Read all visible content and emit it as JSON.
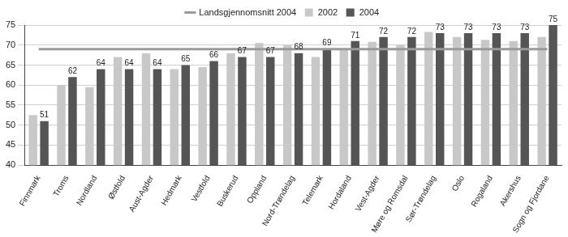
{
  "chart_data": {
    "type": "bar",
    "categories": [
      "Finnmark",
      "Troms",
      "Nordland",
      "Østfold",
      "Aust-Agder",
      "Hedmark",
      "Vestfold",
      "Buskerud",
      "Oppland",
      "Nord-Trøndelag",
      "Telemark",
      "Hordaland",
      "Vest-Agder",
      "Møre og Romsdal",
      "Sør-Trøndelag",
      "Oslo",
      "Rogaland",
      "Akershus",
      "Sogn og Fjordane"
    ],
    "series": [
      {
        "name": "2002",
        "color": "#c8c8c8",
        "values": [
          52.5,
          60,
          59.5,
          67,
          68,
          64,
          64.5,
          68,
          70.5,
          70,
          67,
          69,
          70.8,
          70,
          73.3,
          72,
          71.3,
          71,
          72
        ]
      },
      {
        "name": "2004",
        "color": "#555555",
        "data_labels": true,
        "values": [
          51,
          62,
          64,
          64,
          64,
          65,
          66,
          67,
          67,
          68,
          69,
          71,
          72,
          72,
          73,
          73,
          73,
          73,
          75
        ]
      },
      {
        "name": "Landsgjennomsnitt 2004",
        "type": "line",
        "color": "#9a9a9a",
        "values": [
          69,
          69,
          69,
          69,
          69,
          69,
          69,
          69,
          69,
          69,
          69,
          69,
          69,
          69,
          69,
          69,
          69,
          69,
          69
        ]
      }
    ],
    "ylim": [
      40,
      75
    ],
    "yticks": [
      40,
      45,
      50,
      55,
      60,
      65,
      70,
      75
    ],
    "grid": true,
    "legend": "top"
  }
}
